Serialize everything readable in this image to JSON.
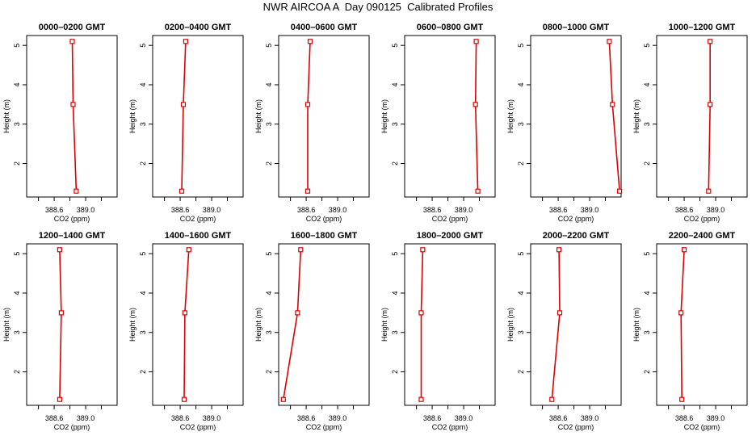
{
  "title": "NWR AIRCOA A  Day 090125  Calibrated Profiles",
  "colors": {
    "line": "#dd0000",
    "marker": "#dd0000",
    "axis": "#000000"
  },
  "chart_data": [
    {
      "type": "line",
      "title": "0000–0200 GMT",
      "xlabel": "CO2 (ppm)",
      "ylabel": "Height (m)",
      "xlim": [
        388.25,
        389.4
      ],
      "ylim": [
        1.15,
        5.25
      ],
      "xticks": [
        388.4,
        388.6,
        388.8,
        389.0,
        389.2
      ],
      "xtick_labels": [
        "",
        "388.6",
        "",
        "389.0",
        ""
      ],
      "yticks": [
        2,
        3,
        4,
        5
      ],
      "ytick_labels": [
        "2",
        "3",
        "4",
        "5"
      ],
      "series": [
        {
          "x": [
            388.88,
            388.84,
            388.83
          ],
          "y": [
            1.3,
            3.5,
            5.1
          ]
        }
      ]
    },
    {
      "type": "line",
      "title": "0200–0400 GMT",
      "xlabel": "CO2 (ppm)",
      "ylabel": "Height (m)",
      "xlim": [
        388.25,
        389.4
      ],
      "ylim": [
        1.15,
        5.25
      ],
      "xticks": [
        388.4,
        388.6,
        388.8,
        389.0,
        389.2
      ],
      "xtick_labels": [
        "",
        "388.6",
        "",
        "389.0",
        ""
      ],
      "yticks": [
        2,
        3,
        4,
        5
      ],
      "ytick_labels": [
        "2",
        "3",
        "4",
        "5"
      ],
      "series": [
        {
          "x": [
            388.62,
            388.64,
            388.67
          ],
          "y": [
            1.3,
            3.5,
            5.1
          ]
        }
      ]
    },
    {
      "type": "line",
      "title": "0400–0600 GMT",
      "xlabel": "CO2 (ppm)",
      "ylabel": "Height (m)",
      "xlim": [
        388.25,
        389.4
      ],
      "ylim": [
        1.15,
        5.25
      ],
      "xticks": [
        388.4,
        388.6,
        388.8,
        389.0,
        389.2
      ],
      "xtick_labels": [
        "",
        "388.6",
        "",
        "389.0",
        ""
      ],
      "yticks": [
        2,
        3,
        4,
        5
      ],
      "ytick_labels": [
        "2",
        "3",
        "4",
        "5"
      ],
      "series": [
        {
          "x": [
            388.62,
            388.62,
            388.65
          ],
          "y": [
            1.3,
            3.5,
            5.1
          ]
        }
      ]
    },
    {
      "type": "line",
      "title": "0600–0800 GMT",
      "xlabel": "CO2 (ppm)",
      "ylabel": "Height (m)",
      "xlim": [
        388.25,
        389.4
      ],
      "ylim": [
        1.15,
        5.25
      ],
      "xticks": [
        388.4,
        388.6,
        388.8,
        389.0,
        389.2
      ],
      "xtick_labels": [
        "",
        "388.6",
        "",
        "389.0",
        ""
      ],
      "yticks": [
        2,
        3,
        4,
        5
      ],
      "ytick_labels": [
        "2",
        "3",
        "4",
        "5"
      ],
      "series": [
        {
          "x": [
            389.18,
            389.15,
            389.16
          ],
          "y": [
            1.3,
            3.5,
            5.1
          ]
        }
      ]
    },
    {
      "type": "line",
      "title": "0800–1000 GMT",
      "xlabel": "CO2 (ppm)",
      "ylabel": "Height (m)",
      "xlim": [
        388.25,
        389.4
      ],
      "ylim": [
        1.15,
        5.25
      ],
      "xticks": [
        388.4,
        388.6,
        388.8,
        389.0,
        389.2
      ],
      "xtick_labels": [
        "",
        "388.6",
        "",
        "389.0",
        ""
      ],
      "yticks": [
        2,
        3,
        4,
        5
      ],
      "ytick_labels": [
        "2",
        "3",
        "4",
        "5"
      ],
      "series": [
        {
          "x": [
            389.38,
            389.29,
            389.25
          ],
          "y": [
            1.3,
            3.5,
            5.1
          ]
        }
      ]
    },
    {
      "type": "line",
      "title": "1000–1200 GMT",
      "xlabel": "CO2 (ppm)",
      "ylabel": "Height (m)",
      "xlim": [
        388.25,
        389.4
      ],
      "ylim": [
        1.15,
        5.25
      ],
      "xticks": [
        388.4,
        388.6,
        388.8,
        389.0,
        389.2
      ],
      "xtick_labels": [
        "",
        "388.6",
        "",
        "389.0",
        ""
      ],
      "yticks": [
        2,
        3,
        4,
        5
      ],
      "ytick_labels": [
        "2",
        "3",
        "4",
        "5"
      ],
      "series": [
        {
          "x": [
            388.91,
            388.93,
            388.93
          ],
          "y": [
            1.3,
            3.5,
            5.1
          ]
        }
      ]
    },
    {
      "type": "line",
      "title": "1200–1400 GMT",
      "xlabel": "CO2 (ppm)",
      "ylabel": "Height (m)",
      "xlim": [
        388.25,
        389.4
      ],
      "ylim": [
        1.15,
        5.25
      ],
      "xticks": [
        388.4,
        388.6,
        388.8,
        389.0,
        389.2
      ],
      "xtick_labels": [
        "",
        "388.6",
        "",
        "389.0",
        ""
      ],
      "yticks": [
        2,
        3,
        4,
        5
      ],
      "ytick_labels": [
        "2",
        "3",
        "4",
        "5"
      ],
      "series": [
        {
          "x": [
            388.67,
            388.69,
            388.67
          ],
          "y": [
            1.3,
            3.5,
            5.1
          ]
        }
      ]
    },
    {
      "type": "line",
      "title": "1400–1600 GMT",
      "xlabel": "CO2 (ppm)",
      "ylabel": "Height (m)",
      "xlim": [
        388.25,
        389.4
      ],
      "ylim": [
        1.15,
        5.25
      ],
      "xticks": [
        388.4,
        388.6,
        388.8,
        389.0,
        389.2
      ],
      "xtick_labels": [
        "",
        "388.6",
        "",
        "389.0",
        ""
      ],
      "yticks": [
        2,
        3,
        4,
        5
      ],
      "ytick_labels": [
        "2",
        "3",
        "4",
        "5"
      ],
      "series": [
        {
          "x": [
            388.65,
            388.66,
            388.71
          ],
          "y": [
            1.3,
            3.5,
            5.1
          ]
        }
      ]
    },
    {
      "type": "line",
      "title": "1600–1800 GMT",
      "xlabel": "CO2 (ppm)",
      "ylabel": "Height (m)",
      "xlim": [
        388.25,
        389.4
      ],
      "ylim": [
        1.15,
        5.25
      ],
      "xticks": [
        388.4,
        388.6,
        388.8,
        389.0,
        389.2
      ],
      "xtick_labels": [
        "",
        "388.6",
        "",
        "389.0",
        ""
      ],
      "yticks": [
        2,
        3,
        4,
        5
      ],
      "ytick_labels": [
        "2",
        "3",
        "4",
        "5"
      ],
      "series": [
        {
          "x": [
            388.31,
            388.49,
            388.53
          ],
          "y": [
            1.3,
            3.5,
            5.1
          ]
        }
      ]
    },
    {
      "type": "line",
      "title": "1800–2000 GMT",
      "xlabel": "CO2 (ppm)",
      "ylabel": "Height (m)",
      "xlim": [
        388.25,
        389.4
      ],
      "ylim": [
        1.15,
        5.25
      ],
      "xticks": [
        388.4,
        388.6,
        388.8,
        389.0,
        389.2
      ],
      "xtick_labels": [
        "",
        "388.6",
        "",
        "389.0",
        ""
      ],
      "yticks": [
        2,
        3,
        4,
        5
      ],
      "ytick_labels": [
        "2",
        "3",
        "4",
        "5"
      ],
      "series": [
        {
          "x": [
            388.46,
            388.46,
            388.48
          ],
          "y": [
            1.3,
            3.5,
            5.1
          ]
        }
      ]
    },
    {
      "type": "line",
      "title": "2000–2200 GMT",
      "xlabel": "CO2 (ppm)",
      "ylabel": "Height (m)",
      "xlim": [
        388.25,
        389.4
      ],
      "ylim": [
        1.15,
        5.25
      ],
      "xticks": [
        388.4,
        388.6,
        388.8,
        389.0,
        389.2
      ],
      "xtick_labels": [
        "",
        "388.6",
        "",
        "389.0",
        ""
      ],
      "yticks": [
        2,
        3,
        4,
        5
      ],
      "ytick_labels": [
        "2",
        "3",
        "4",
        "5"
      ],
      "series": [
        {
          "x": [
            388.52,
            388.62,
            388.61
          ],
          "y": [
            1.3,
            3.5,
            5.1
          ]
        }
      ]
    },
    {
      "type": "line",
      "title": "2200–2400 GMT",
      "xlabel": "CO2 (ppm)",
      "ylabel": "Height (m)",
      "xlim": [
        388.25,
        389.4
      ],
      "ylim": [
        1.15,
        5.25
      ],
      "xticks": [
        388.4,
        388.6,
        388.8,
        389.0,
        389.2
      ],
      "xtick_labels": [
        "",
        "388.6",
        "",
        "389.0",
        ""
      ],
      "yticks": [
        2,
        3,
        4,
        5
      ],
      "ytick_labels": [
        "2",
        "3",
        "4",
        "5"
      ],
      "series": [
        {
          "x": [
            388.57,
            388.56,
            388.6
          ],
          "y": [
            1.3,
            3.5,
            5.1
          ]
        }
      ]
    }
  ]
}
